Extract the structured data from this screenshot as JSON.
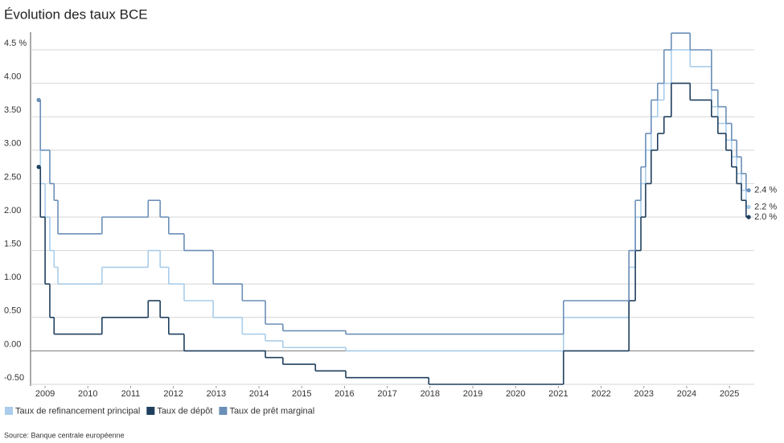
{
  "chart_data": {
    "type": "step",
    "title": "Évolution des taux BCE",
    "source": "Source: Banque centrale européenne",
    "xlim": [
      2008.66,
      2025.58
    ],
    "xticks": [
      2009,
      2010,
      2011,
      2012,
      2013,
      2014,
      2015,
      2016,
      2017,
      2018,
      2019,
      2020,
      2021,
      2022,
      2023,
      2024,
      2025
    ],
    "ylim": [
      -0.5,
      4.75
    ],
    "yticks": [
      {
        "value": -0.5,
        "label": "-0.50"
      },
      {
        "value": 0,
        "label": "0.00"
      },
      {
        "value": 0.5,
        "label": "0.50"
      },
      {
        "value": 1,
        "label": "1.00"
      },
      {
        "value": 1.5,
        "label": "1.50"
      },
      {
        "value": 2,
        "label": "2.00"
      },
      {
        "value": 2.5,
        "label": "2.50"
      },
      {
        "value": 3,
        "label": "3.00"
      },
      {
        "value": 3.5,
        "label": "3.50"
      },
      {
        "value": 4,
        "label": "4.00"
      },
      {
        "value": 4.5,
        "label": "4.5 %"
      }
    ],
    "grid": true,
    "legend": "bottom-left",
    "series": [
      {
        "name": "Taux de refinancement principal",
        "color": "#a9cdea",
        "end_label": "2.2 %",
        "x": [
          2008.85,
          2008.89,
          2009.0,
          2009.11,
          2009.21,
          2009.3,
          2010.33,
          2011.41,
          2011.69,
          2011.89,
          2012.25,
          2012.93,
          2013.61,
          2014.15,
          2014.56,
          2016.03,
          2021.12,
          2022.65,
          2022.8,
          2022.93,
          2023.04,
          2023.17,
          2023.32,
          2023.47,
          2023.64,
          2024.08,
          2024.58,
          2024.73,
          2024.92,
          2025.05,
          2025.17,
          2025.28,
          2025.39,
          2025.45
        ],
        "values": [
          3.75,
          2.5,
          2.0,
          1.5,
          1.25,
          1.0,
          1.25,
          1.5,
          1.25,
          1.0,
          0.75,
          0.5,
          0.25,
          0.15,
          0.05,
          0.0,
          0.5,
          1.25,
          2.0,
          2.5,
          3.0,
          3.5,
          3.75,
          4.0,
          4.5,
          4.25,
          3.65,
          3.4,
          3.15,
          2.9,
          2.65,
          2.4,
          2.15,
          2.15
        ]
      },
      {
        "name": "Taux de dépôt",
        "color": "#1f3f5e",
        "end_label": "2.0 %",
        "x": [
          2008.85,
          2008.89,
          2009.0,
          2009.11,
          2009.21,
          2010.33,
          2011.41,
          2011.69,
          2011.89,
          2012.25,
          2014.15,
          2014.56,
          2015.32,
          2016.03,
          2017.97,
          2021.12,
          2022.65,
          2022.8,
          2022.93,
          2023.04,
          2023.17,
          2023.32,
          2023.47,
          2023.64,
          2024.08,
          2024.58,
          2024.73,
          2024.92,
          2025.05,
          2025.17,
          2025.28,
          2025.39,
          2025.45
        ],
        "values": [
          2.75,
          2.0,
          1.0,
          0.5,
          0.25,
          0.5,
          0.75,
          0.5,
          0.25,
          0.0,
          -0.1,
          -0.2,
          -0.3,
          -0.4,
          -0.5,
          0.0,
          0.75,
          1.5,
          2.0,
          2.5,
          3.0,
          3.25,
          3.5,
          4.0,
          3.75,
          3.5,
          3.25,
          3.0,
          2.75,
          2.5,
          2.25,
          2.0,
          2.0
        ]
      },
      {
        "name": "Taux de prêt marginal",
        "color": "#6b8fb8",
        "end_label": "2.4 %",
        "x": [
          2008.85,
          2008.89,
          2009.11,
          2009.21,
          2009.3,
          2010.33,
          2011.41,
          2011.69,
          2011.89,
          2012.25,
          2012.93,
          2013.61,
          2014.15,
          2014.56,
          2016.03,
          2021.12,
          2022.65,
          2022.8,
          2022.93,
          2023.04,
          2023.17,
          2023.32,
          2023.47,
          2023.64,
          2024.08,
          2024.58,
          2024.73,
          2024.92,
          2025.05,
          2025.17,
          2025.28,
          2025.39,
          2025.45
        ],
        "values": [
          3.75,
          3.0,
          2.5,
          2.25,
          1.75,
          2.0,
          2.25,
          2.0,
          1.75,
          1.5,
          1.0,
          0.75,
          0.4,
          0.3,
          0.25,
          0.75,
          1.5,
          2.25,
          2.75,
          3.25,
          3.75,
          4.0,
          4.5,
          4.75,
          4.5,
          3.9,
          3.65,
          3.4,
          3.15,
          2.9,
          2.65,
          2.4,
          2.4
        ]
      }
    ]
  }
}
